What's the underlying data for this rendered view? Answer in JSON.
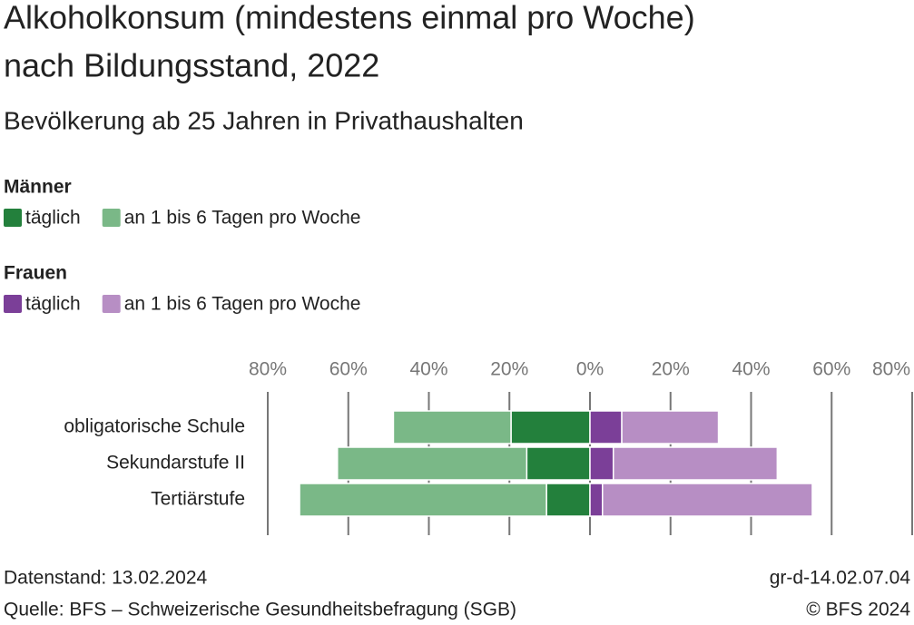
{
  "chart_data": {
    "type": "diverging-bar",
    "title": [
      "Alkoholkonsum (mindestens einmal pro Woche)",
      "nach Bildungsstand, 2022"
    ],
    "subtitle": "Bevölkerung ab 25 Jahren in Privathaushalten",
    "categories": [
      "obligatorische Schule",
      "Sekundarstufe II",
      "Tertiärstufe"
    ],
    "groups": [
      {
        "name": "Männer",
        "series": [
          {
            "name": "täglich",
            "color": "#23803c",
            "values": [
              -19.6,
              -15.7,
              -10.8
            ]
          },
          {
            "name": "an 1 bis 6 Tagen pro Woche",
            "color": "#7ab887",
            "values": [
              -29.2,
              -47.0,
              -61.3
            ]
          }
        ]
      },
      {
        "name": "Frauen",
        "series": [
          {
            "name": "täglich",
            "color": "#7b3f98",
            "values": [
              7.9,
              5.8,
              3.1
            ]
          },
          {
            "name": "an 1 bis 6 Tagen pro Woche",
            "color": "#b78ec4",
            "values": [
              24.0,
              40.7,
              52.1
            ]
          }
        ]
      }
    ],
    "xlim": [
      -80,
      80
    ],
    "xticks": [
      {
        "value": -80,
        "label": "80%"
      },
      {
        "value": -60,
        "label": "60%"
      },
      {
        "value": -40,
        "label": "40%"
      },
      {
        "value": -20,
        "label": "20%"
      },
      {
        "value": 0,
        "label": "0%"
      },
      {
        "value": 20,
        "label": "20%"
      },
      {
        "value": 40,
        "label": "40%"
      },
      {
        "value": 60,
        "label": "60%"
      },
      {
        "value": 80,
        "label": "80%"
      }
    ],
    "grid": true,
    "footer": {
      "left": [
        "Datenstand: 13.02.2024",
        "Quelle: BFS – Schweizerische Gesundheitsbefragung (SGB)"
      ],
      "right": [
        "gr-d-14.02.07.04",
        "© BFS 2024"
      ]
    }
  }
}
